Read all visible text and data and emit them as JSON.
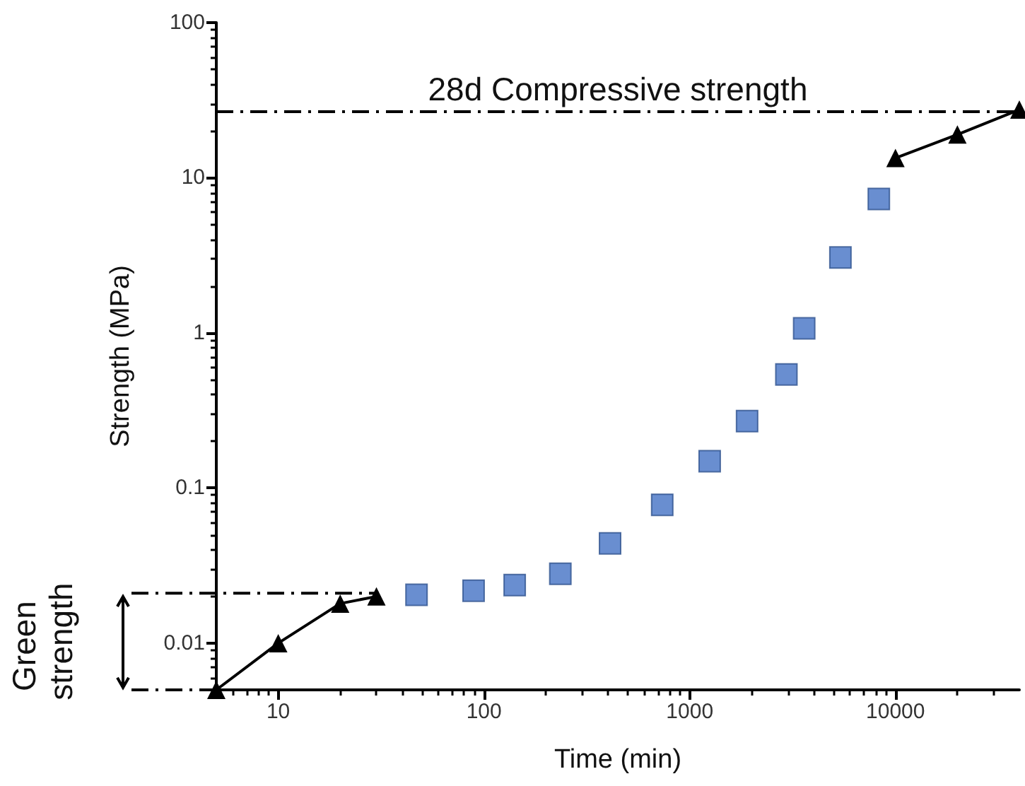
{
  "chart_data": {
    "type": "scatter",
    "xlabel": "Time (min)",
    "ylabel": "Strength (MPa)",
    "log": "xy",
    "xlim": [
      5,
      40000
    ],
    "xticks": [
      10,
      100,
      1000,
      10000
    ],
    "ylim": [
      0.005,
      100
    ],
    "yticks": [
      0.01,
      0.1,
      1,
      10,
      100
    ],
    "grid": false,
    "series": [
      {
        "marker": "square",
        "color": "#4472c4",
        "x": [
          47,
          89,
          141,
          235,
          410,
          735,
          1250,
          1900,
          2950,
          3600,
          5400,
          8300
        ],
        "values": [
          0.0205,
          0.0218,
          0.0237,
          0.028,
          0.044,
          0.078,
          0.149,
          0.27,
          0.54,
          1.07,
          3.06,
          7.3
        ]
      },
      {
        "type": "line",
        "marker": "triangle",
        "line_style": "solid",
        "color": "#000000",
        "x": [
          5,
          10,
          20,
          30
        ],
        "values": [
          0.005,
          0.01,
          0.018,
          0.02
        ]
      },
      {
        "type": "line",
        "marker": "triangle",
        "line_style": "solid",
        "color": "#000000",
        "x": [
          10000,
          20000,
          40000
        ],
        "values": [
          13.4,
          19,
          27.5
        ]
      }
    ],
    "ref_lines": [
      {
        "axis": "y",
        "value": 27,
        "label": "28d Compressive strength",
        "line_style": "dashdot",
        "color": "#000000"
      },
      {
        "axis": "y",
        "value": 0.021,
        "line_style": "dashdot",
        "color": "#000000"
      },
      {
        "axis": "y",
        "value": 0.005,
        "line_style": "dashdot",
        "color": "#000000"
      }
    ],
    "annotations": [
      "Green strength"
    ]
  }
}
